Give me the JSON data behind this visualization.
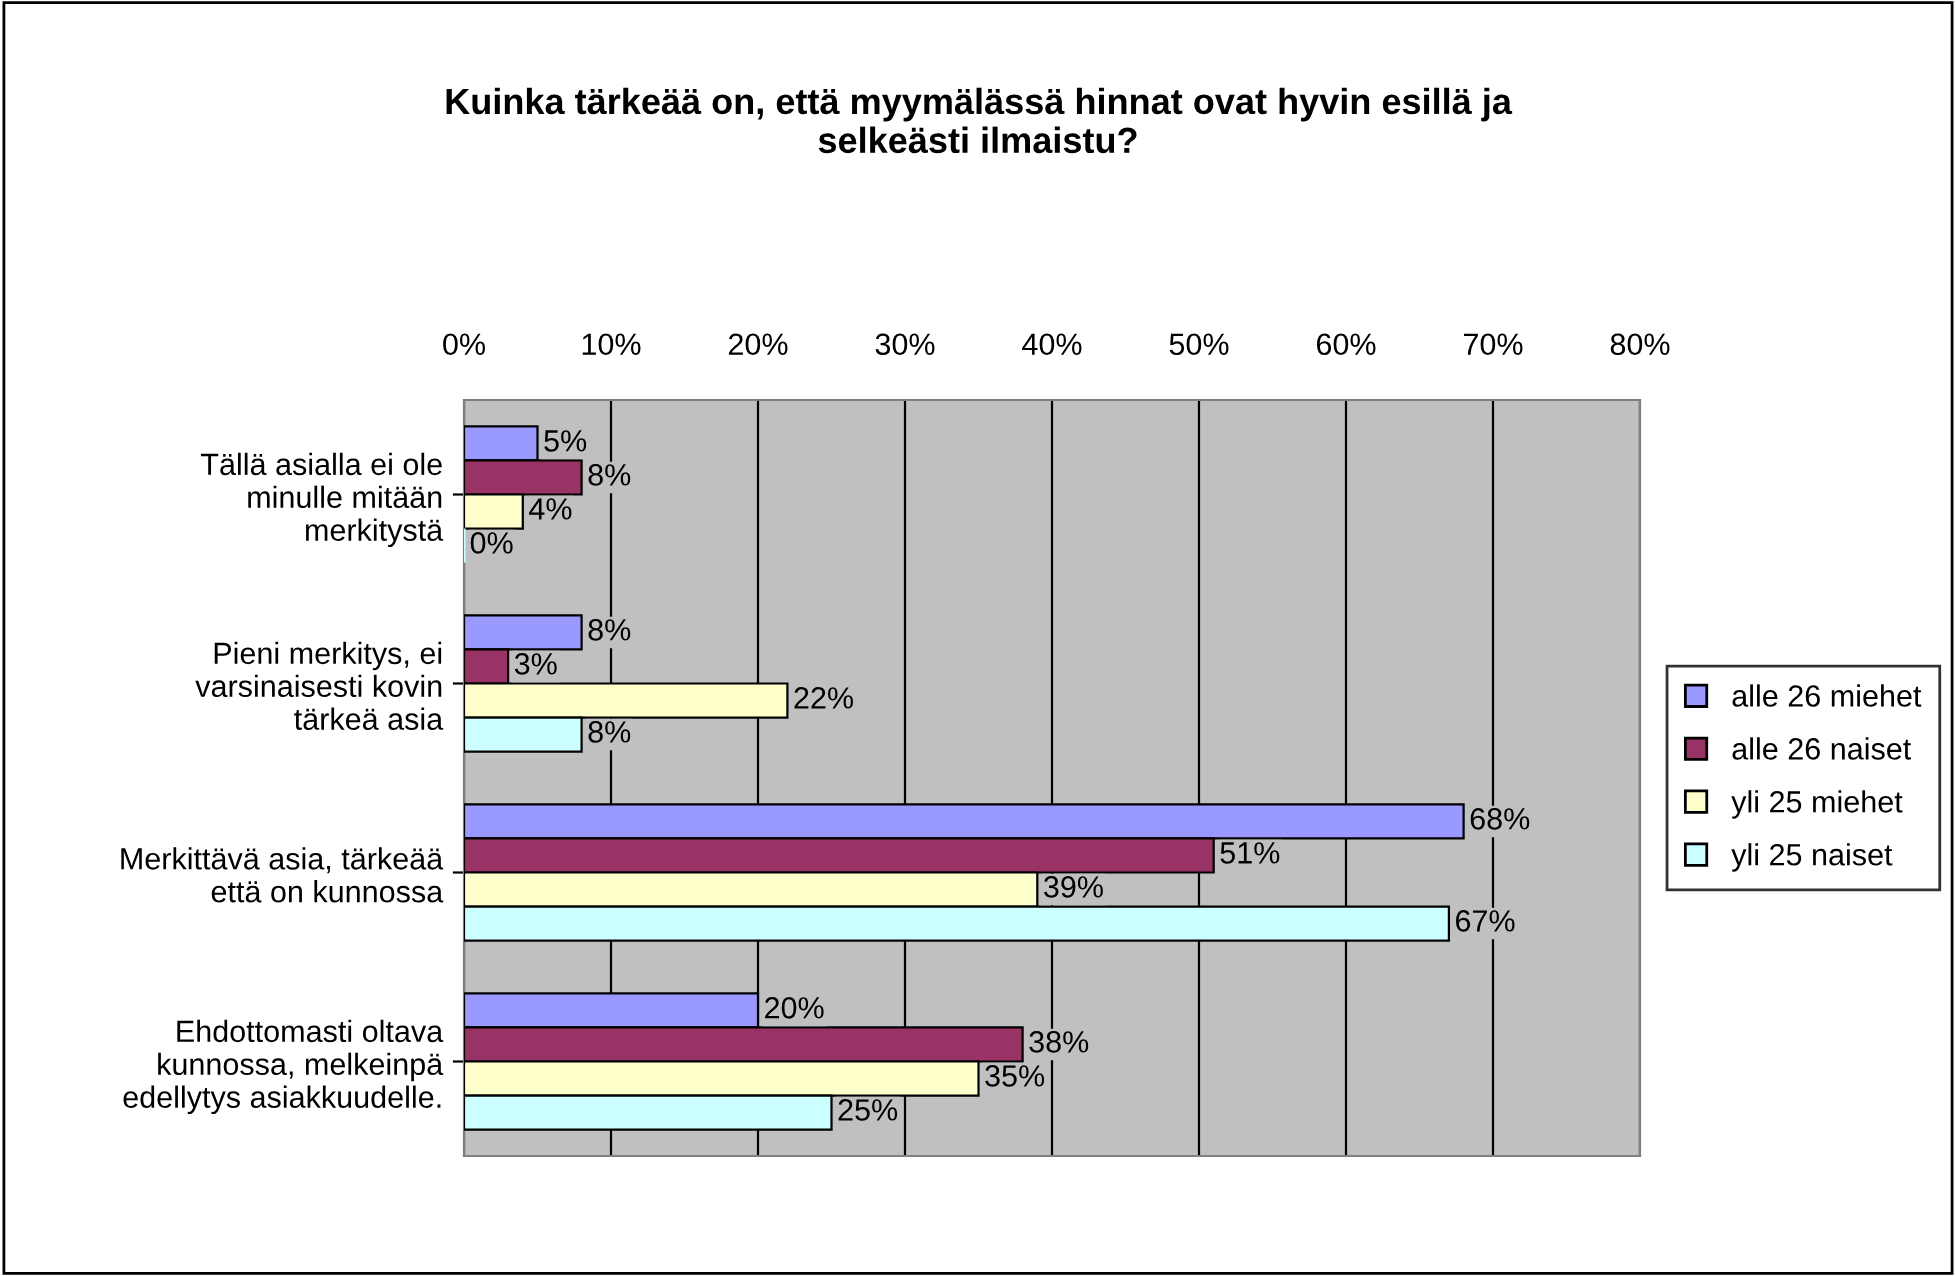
{
  "chart_data": {
    "type": "bar",
    "orientation": "horizontal",
    "title": "Kuinka tärkeää on, että myymälässä hinnat ovat hyvin esillä ja\nselkeästi ilmaistu?",
    "categories": [
      "Tällä asialla ei ole\nminulle mitään\nmerkitystä",
      "Pieni merkitys, ei\nvarsinaisesti kovin\ntärkeä asia",
      "Merkittävä asia, tärkeää\nettä on kunnossa",
      "Ehdottomasti oltava\nkunnossa, melkeinpä\nedellytys asiakkuudelle."
    ],
    "series": [
      {
        "name": "alle 26 miehet",
        "color": "#9999ff",
        "values": [
          5,
          8,
          68,
          20
        ],
        "value_labels": [
          "5%",
          "8%",
          "68%",
          "20%"
        ]
      },
      {
        "name": "alle 26 naiset",
        "color": "#993366",
        "values": [
          8,
          3,
          51,
          38
        ],
        "value_labels": [
          "8%",
          "3%",
          "51%",
          "38%"
        ]
      },
      {
        "name": "yli 25 miehet",
        "color": "#ffffcc",
        "values": [
          4,
          22,
          39,
          35
        ],
        "value_labels": [
          "4%",
          "22%",
          "39%",
          "35%"
        ]
      },
      {
        "name": "yli 25 naiset",
        "color": "#ccffff",
        "values": [
          0,
          8,
          67,
          25
        ],
        "value_labels": [
          "0%",
          "8%",
          "67%",
          "25%"
        ]
      }
    ],
    "xlim": [
      0,
      80
    ],
    "xticks": [
      {
        "value": 0,
        "label": "0%"
      },
      {
        "value": 10,
        "label": "10%"
      },
      {
        "value": 20,
        "label": "20%"
      },
      {
        "value": 30,
        "label": "30%"
      },
      {
        "value": 40,
        "label": "40%"
      },
      {
        "value": 50,
        "label": "50%"
      },
      {
        "value": 60,
        "label": "60%"
      },
      {
        "value": 70,
        "label": "70%"
      },
      {
        "value": 80,
        "label": "80%"
      }
    ],
    "grid": "x",
    "legend": "right"
  }
}
